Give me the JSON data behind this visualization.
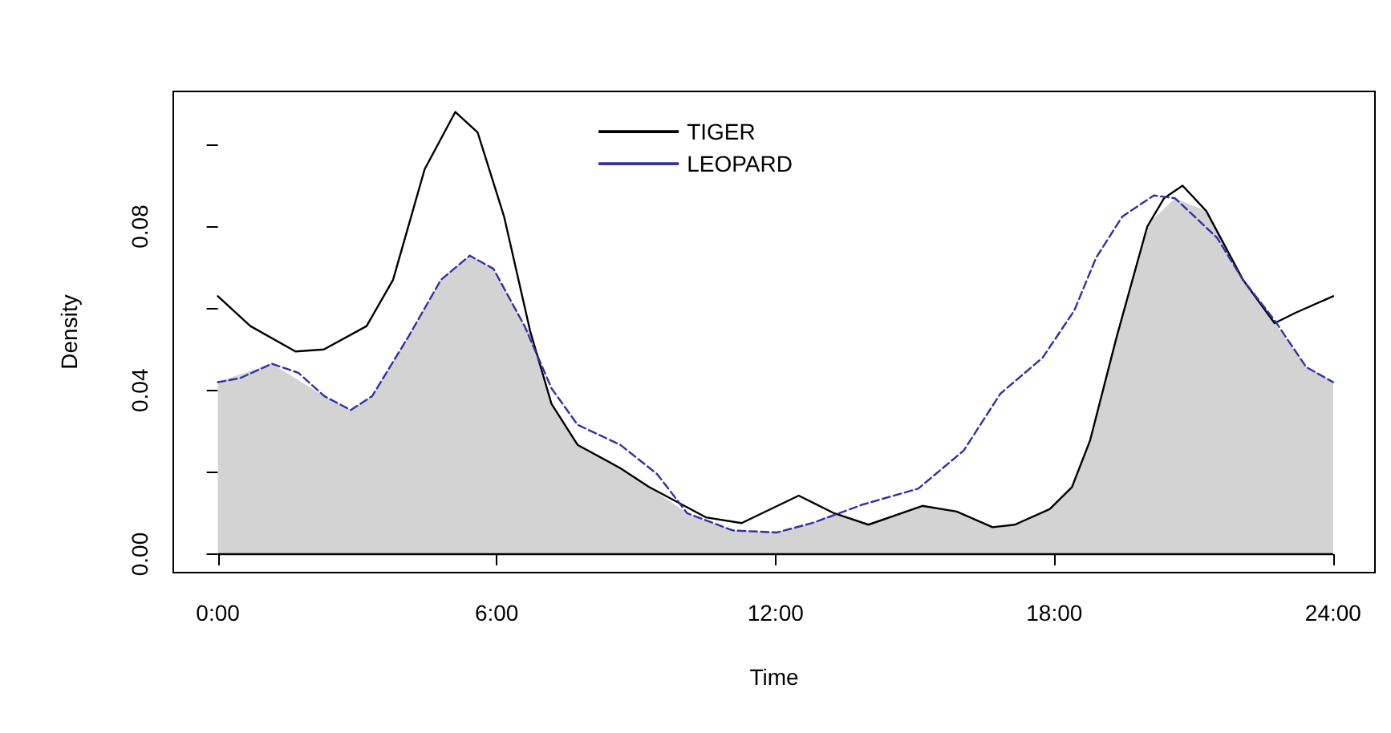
{
  "chart_data": {
    "type": "line",
    "xlabel": "Time",
    "ylabel": "Density",
    "xlim": [
      -0.96,
      24.9
    ],
    "ylim": [
      -0.0045,
      0.113
    ],
    "xticks": [
      {
        "value": 0,
        "label": "0:00"
      },
      {
        "value": 6,
        "label": "6:00"
      },
      {
        "value": 12,
        "label": "12:00"
      },
      {
        "value": 18,
        "label": "18:00"
      },
      {
        "value": 24,
        "label": "24:00"
      }
    ],
    "yticks": [
      {
        "value": 0,
        "label": "0.00"
      },
      {
        "value": 0.02,
        "label": null
      },
      {
        "value": 0.04,
        "label": "0.04"
      },
      {
        "value": 0.06,
        "label": null
      },
      {
        "value": 0.08,
        "label": "0.08"
      },
      {
        "value": 0.1,
        "label": null
      }
    ],
    "grid": false,
    "legend": "top",
    "marker": "none",
    "ref_lines": [
      {
        "axis": "y",
        "value": 0,
        "color": "#000000"
      }
    ],
    "series": [
      {
        "type": "area",
        "color": "#d3d3d3",
        "x": [
          0,
          1.16,
          2.29,
          2.86,
          3.32,
          4.11,
          4.8,
          5.42,
          5.93,
          6.6,
          6.72,
          7.18,
          7.74,
          8.66,
          9.28,
          10.1,
          11.08,
          12.03,
          12.79,
          13.26,
          14.0,
          15.16,
          15.9,
          16.67,
          17.15,
          17.9,
          18.38,
          18.77,
          19.34,
          20.0,
          20.14,
          20.6,
          21.27,
          22.06,
          22.74,
          23.42,
          24
        ],
        "values": [
          0.042,
          0.0465,
          0.0386,
          0.0352,
          0.0386,
          0.0533,
          0.067,
          0.0729,
          0.0697,
          0.0557,
          0.0545,
          0.0367,
          0.0267,
          0.021,
          0.0164,
          0.01,
          0.0058,
          0.0053,
          0.0076,
          0.01,
          0.0072,
          0.0118,
          0.0104,
          0.0066,
          0.0072,
          0.011,
          0.0164,
          0.0278,
          0.053,
          0.08,
          0.082,
          0.0869,
          0.0838,
          0.067,
          0.0564,
          0.0457,
          0.042
        ]
      },
      {
        "name": "TIGER",
        "color": "#000000",
        "line_style": "solid",
        "x": [
          0,
          0.7,
          1.67,
          2.28,
          3.2,
          3.77,
          4.45,
          5.11,
          5.59,
          6.16,
          6.72,
          7.18,
          7.74,
          8.66,
          9.28,
          10.5,
          11.27,
          12.5,
          13.26,
          14.0,
          15.16,
          15.9,
          16.67,
          17.15,
          17.9,
          18.38,
          18.77,
          19.34,
          20.0,
          20.36,
          20.76,
          21.27,
          22.06,
          22.74,
          23.2,
          24
        ],
        "values": [
          0.063,
          0.0557,
          0.0495,
          0.05,
          0.0557,
          0.067,
          0.094,
          0.108,
          0.103,
          0.0824,
          0.0545,
          0.0367,
          0.0267,
          0.021,
          0.0164,
          0.009,
          0.0076,
          0.0143,
          0.01,
          0.0072,
          0.0118,
          0.0104,
          0.0066,
          0.0072,
          0.011,
          0.0164,
          0.0278,
          0.053,
          0.08,
          0.0869,
          0.09,
          0.0838,
          0.067,
          0.0564,
          0.059,
          0.063
        ]
      },
      {
        "name": "LEOPARD",
        "color": "#3030a8",
        "line_style": "dashed",
        "x": [
          0,
          0.48,
          1.16,
          1.73,
          2.29,
          2.86,
          3.32,
          4.11,
          4.8,
          5.42,
          5.93,
          6.6,
          7.18,
          7.74,
          8.66,
          9.45,
          10.1,
          11.08,
          12.03,
          12.79,
          13.9,
          15.07,
          16.05,
          16.84,
          17.75,
          18.43,
          18.9,
          19.46,
          20.14,
          20.6,
          21.5,
          22.06,
          22.74,
          23.42,
          24
        ],
        "values": [
          0.042,
          0.043,
          0.0465,
          0.0443,
          0.0386,
          0.0352,
          0.0386,
          0.0533,
          0.067,
          0.0729,
          0.0697,
          0.0557,
          0.0405,
          0.0316,
          0.0267,
          0.0196,
          0.01,
          0.0058,
          0.0053,
          0.0076,
          0.0122,
          0.016,
          0.0253,
          0.0392,
          0.048,
          0.0595,
          0.0724,
          0.0824,
          0.0876,
          0.0869,
          0.0773,
          0.067,
          0.0571,
          0.0457,
          0.042
        ]
      }
    ]
  }
}
